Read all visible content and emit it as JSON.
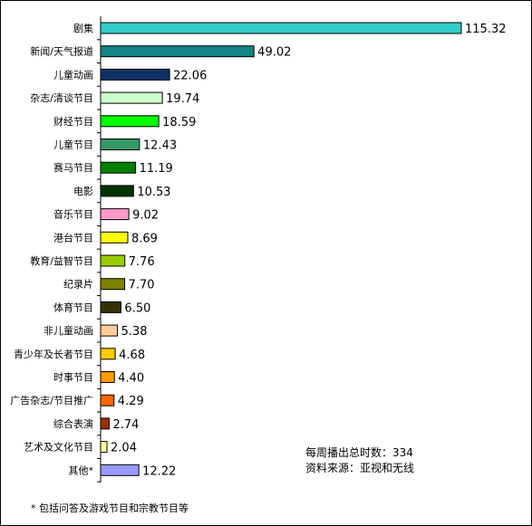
{
  "chart_data": {
    "type": "bar",
    "orientation": "horizontal",
    "categories": [
      "剧集",
      "新闻/天气报道",
      "儿童动画",
      "杂志/清谈节目",
      "财经节目",
      "儿童节目",
      "赛马节目",
      "电影",
      "音乐节目",
      "港台节目",
      "教育/益智节目",
      "纪录片",
      "体育节目",
      "非儿童动画",
      "青少年及长者节目",
      "时事节目",
      "广告杂志/节目推广",
      "综合表演",
      "艺术及文化节目",
      "其他*"
    ],
    "values": [
      115.32,
      49.02,
      22.06,
      19.74,
      18.59,
      12.43,
      11.19,
      10.53,
      9.02,
      8.69,
      7.76,
      7.7,
      6.5,
      5.38,
      4.68,
      4.4,
      4.29,
      2.74,
      2.04,
      12.22
    ],
    "value_labels": [
      "115.32",
      "49.02",
      "22.06",
      "19.74",
      "18.59",
      "12.43",
      "11.19",
      "10.53",
      "9.02",
      "8.69",
      "7.76",
      "7.70",
      "6.50",
      "5.38",
      "4.68",
      "4.40",
      "4.29",
      "2.74",
      "2.04",
      "12.22"
    ],
    "colors": [
      "#33cccc",
      "#138384",
      "#0f3265",
      "#ccffcc",
      "#00ff00",
      "#339966",
      "#008000",
      "#003300",
      "#ff99cc",
      "#ffff00",
      "#99cc00",
      "#808000",
      "#333300",
      "#ffcc99",
      "#ffcc00",
      "#ff9900",
      "#ff6600",
      "#993300",
      "#ffff99",
      "#9999ff"
    ],
    "xlim": [
      0,
      115.32
    ],
    "title": "",
    "xlabel": "",
    "ylabel": "",
    "grid": false,
    "legend": "none"
  },
  "info": {
    "total_hours": "每周播出总时数：334",
    "source": "资料来源：亚视和无线"
  },
  "footnote": "* 包括问答及游戏节目和宗教节目等"
}
